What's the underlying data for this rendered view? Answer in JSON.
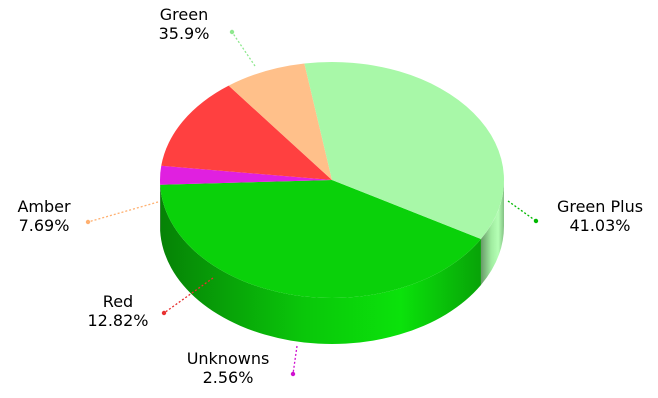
{
  "chart_data": {
    "type": "pie",
    "title": "",
    "style": "3d-exploded-labels",
    "legend": "none",
    "slices": [
      {
        "label": "Green Plus",
        "value": 41.03,
        "value_label": "41.03%",
        "color": "#0ad10a",
        "label_color": "#00b800"
      },
      {
        "label": "Unknowns",
        "value": 2.56,
        "value_label": "2.56%",
        "color": "#e020e0",
        "label_color": "#d010d0"
      },
      {
        "label": "Red",
        "value": 12.82,
        "value_label": "12.82%",
        "color": "#ff4040",
        "label_color": "#e83030"
      },
      {
        "label": "Amber",
        "value": 7.69,
        "value_label": "7.69%",
        "color": "#ffc08a",
        "label_color": "#ffb070"
      },
      {
        "label": "Green",
        "value": 35.9,
        "value_label": "35.9%",
        "color": "#a8f8a8",
        "label_color": "#8ee88e"
      }
    ]
  }
}
